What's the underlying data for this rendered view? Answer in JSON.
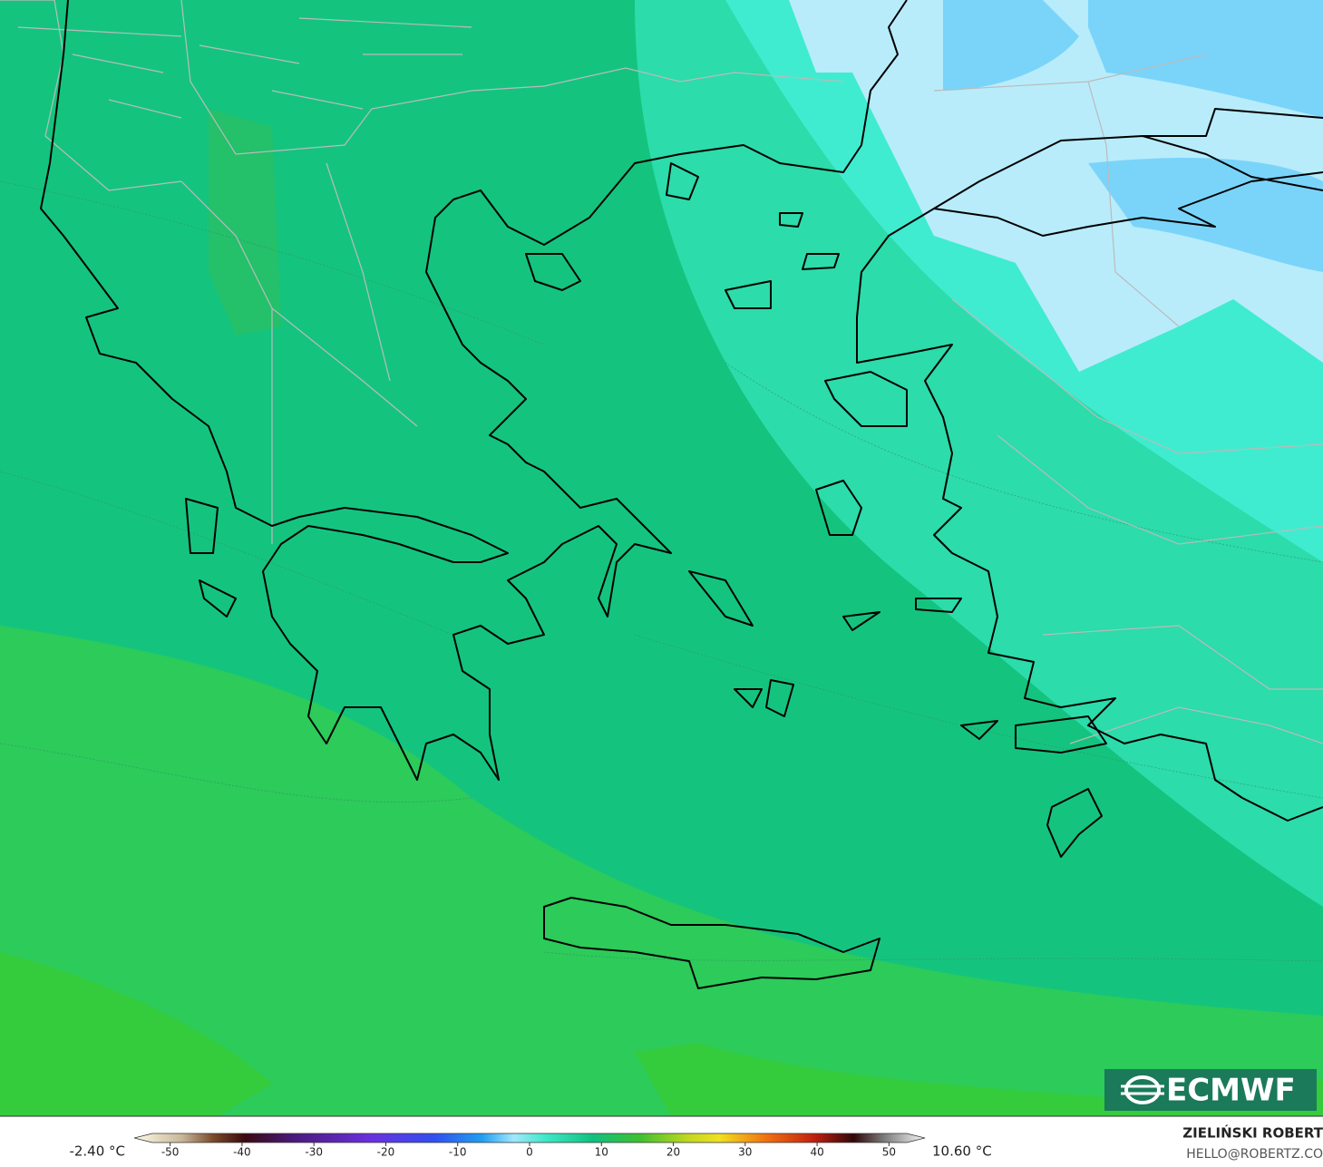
{
  "map": {
    "logo": "ECMWF",
    "min_label": "-2.40 °C",
    "max_label": "10.60 °C",
    "author": "ZIELIŃSKI ROBERT",
    "contact": "HELLO@ROBERTZ.CO"
  },
  "colorbar": {
    "lim": [
      -55,
      55
    ],
    "ticks": [
      -50,
      -40,
      -30,
      -20,
      -10,
      0,
      10,
      20,
      30,
      40,
      50
    ]
  }
}
